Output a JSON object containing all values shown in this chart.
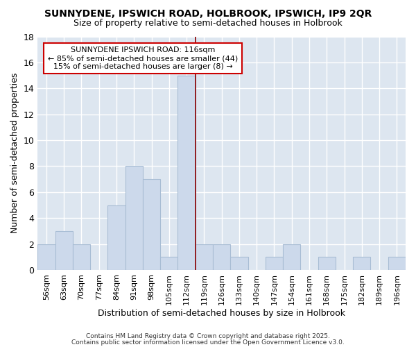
{
  "title": "SUNNYDENE, IPSWICH ROAD, HOLBROOK, IPSWICH, IP9 2QR",
  "subtitle": "Size of property relative to semi-detached houses in Holbrook",
  "xlabel": "Distribution of semi-detached houses by size in Holbrook",
  "ylabel": "Number of semi-detached properties",
  "bar_color": "#ccd9eb",
  "bar_edge_color": "#a8bdd4",
  "fig_background_color": "#ffffff",
  "plot_background_color": "#dde6f0",
  "grid_color": "#ffffff",
  "categories": [
    "56sqm",
    "63sqm",
    "70sqm",
    "77sqm",
    "84sqm",
    "91sqm",
    "98sqm",
    "105sqm",
    "112sqm",
    "119sqm",
    "126sqm",
    "133sqm",
    "140sqm",
    "147sqm",
    "154sqm",
    "161sqm",
    "168sqm",
    "175sqm",
    "182sqm",
    "189sqm",
    "196sqm"
  ],
  "values": [
    2,
    3,
    2,
    0,
    5,
    8,
    7,
    1,
    15,
    2,
    2,
    1,
    0,
    1,
    2,
    0,
    1,
    0,
    1,
    0,
    1
  ],
  "vline_color": "#8b0000",
  "annotation_title": "SUNNYDENE IPSWICH ROAD: 116sqm",
  "annotation_line1": "← 85% of semi-detached houses are smaller (44)",
  "annotation_line2": "15% of semi-detached houses are larger (8) →",
  "annotation_box_edge_color": "#cc0000",
  "annotation_box_face_color": "#ffffff",
  "ylim": [
    0,
    18
  ],
  "yticks": [
    0,
    2,
    4,
    6,
    8,
    10,
    12,
    14,
    16,
    18
  ],
  "footer_line1": "Contains HM Land Registry data © Crown copyright and database right 2025.",
  "footer_line2": "Contains public sector information licensed under the Open Government Licence v3.0."
}
